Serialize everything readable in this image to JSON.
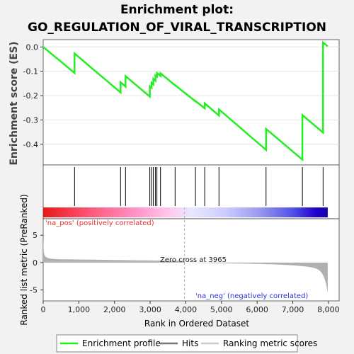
{
  "chart_data": {
    "type": "line",
    "title_line1": "Enrichment plot:",
    "title_line2": "GO_REGULATION_OF_VIRAL_TRANSCRIPTION",
    "es_ylabel": "Enrichment score (ES)",
    "metric_ylabel": "Ranked list metric (PreRanked)",
    "xlabel": "Rank in Ordered Dataset",
    "x_ticks": [
      "0",
      "1,000",
      "2,000",
      "3,000",
      "4,000",
      "5,000",
      "6,000",
      "7,000",
      "8,000"
    ],
    "x_tick_values": [
      0,
      1000,
      2000,
      3000,
      4000,
      5000,
      6000,
      7000,
      8000
    ],
    "xlim": [
      0,
      8300
    ],
    "es_yticks": [
      "0.0",
      "-0.1",
      "-0.2",
      "-0.3",
      "-0.4"
    ],
    "es_ytick_values": [
      0.0,
      -0.1,
      -0.2,
      -0.3,
      -0.4
    ],
    "es_ylim": [
      -0.485,
      0.03
    ],
    "metric_yticks": [
      "5",
      "0",
      "-5"
    ],
    "metric_ytick_values": [
      5,
      0,
      -5
    ],
    "metric_ylim": [
      -7,
      8
    ],
    "zero_cross_label": "Zero cross at 3965",
    "zero_cross": 3965,
    "pos_label": "'na_pos' (positively correlated)",
    "neg_label": "'na_neg' (negatively correlated)",
    "hits": [
      880,
      2170,
      2310,
      2990,
      3040,
      3090,
      3150,
      3190,
      3290,
      3700,
      4270,
      4530,
      4930,
      6250,
      7270,
      7850
    ],
    "enrichment_profile": {
      "x": [
        0,
        880,
        880,
        2170,
        2170,
        2310,
        2310,
        2990,
        2990,
        3040,
        3040,
        3090,
        3090,
        3150,
        3150,
        3190,
        3190,
        3290,
        3290,
        3700,
        3700,
        4270,
        4270,
        4530,
        4530,
        4930,
        4930,
        6250,
        6250,
        7270,
        7270,
        7850,
        7850,
        7980
      ],
      "y": [
        0.0,
        -0.107,
        -0.027,
        -0.187,
        -0.145,
        -0.163,
        -0.12,
        -0.204,
        -0.162,
        -0.168,
        -0.147,
        -0.154,
        -0.131,
        -0.139,
        -0.117,
        -0.122,
        -0.107,
        -0.119,
        -0.108,
        -0.158,
        -0.157,
        -0.223,
        -0.222,
        -0.252,
        -0.232,
        -0.282,
        -0.257,
        -0.423,
        -0.337,
        -0.463,
        -0.28,
        -0.352,
        0.018,
        0.003
      ]
    },
    "legend": [
      "Enrichment profile",
      "Hits",
      "Ranking metric scores"
    ],
    "colors": {
      "profile": "#22ee22",
      "hits": "#000000",
      "metric_fill": "#b0b0b0",
      "zero_cross_line": "#aaaaaa",
      "heat_gradient": [
        "#ee1111",
        "#ff6688",
        "#ffaadd",
        "#ddddff",
        "#8888ee",
        "#3333dd",
        "#1100bb"
      ]
    }
  }
}
